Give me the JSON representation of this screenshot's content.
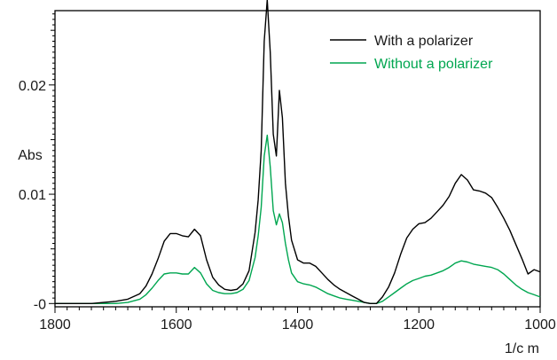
{
  "chart_data": {
    "type": "line",
    "title": "",
    "xlabel": "1/c m",
    "ylabel": "Abs",
    "xlim": [
      1800,
      1000
    ],
    "ylim": [
      -0.0003,
      0.0268
    ],
    "x_reversed": true,
    "x_ticks": [
      {
        "value": 1800,
        "label": "1800"
      },
      {
        "value": 1600,
        "label": "1600"
      },
      {
        "value": 1400,
        "label": "1400"
      },
      {
        "value": 1200,
        "label": "1200"
      },
      {
        "value": 1000,
        "label": "1000"
      }
    ],
    "y_ticks": [
      {
        "value": 0,
        "label": "-0"
      },
      {
        "value": 0.01,
        "label": "0.01"
      },
      {
        "value": 0.02,
        "label": "0.02"
      }
    ],
    "grid": false,
    "legend_position": "top-right",
    "series": [
      {
        "name": "With a polarizer",
        "color": "#000000",
        "x": [
          1800,
          1780,
          1760,
          1740,
          1720,
          1700,
          1680,
          1660,
          1650,
          1640,
          1630,
          1620,
          1610,
          1600,
          1590,
          1580,
          1570,
          1560,
          1550,
          1540,
          1530,
          1520,
          1510,
          1500,
          1490,
          1480,
          1470,
          1465,
          1460,
          1455,
          1450,
          1445,
          1440,
          1435,
          1430,
          1425,
          1420,
          1415,
          1410,
          1400,
          1390,
          1380,
          1370,
          1360,
          1350,
          1340,
          1330,
          1320,
          1310,
          1300,
          1290,
          1280,
          1270,
          1260,
          1250,
          1240,
          1230,
          1220,
          1210,
          1200,
          1190,
          1180,
          1170,
          1160,
          1150,
          1140,
          1130,
          1120,
          1110,
          1100,
          1090,
          1080,
          1070,
          1060,
          1050,
          1040,
          1030,
          1020,
          1010,
          1000
        ],
        "y": [
          0.0,
          0.0,
          0.0,
          0.0,
          0.0001,
          0.0002,
          0.0004,
          0.0009,
          0.0016,
          0.0027,
          0.0041,
          0.0057,
          0.0064,
          0.0064,
          0.0062,
          0.0061,
          0.0068,
          0.0062,
          0.004,
          0.0024,
          0.0017,
          0.0013,
          0.0012,
          0.0013,
          0.0018,
          0.003,
          0.0065,
          0.0095,
          0.014,
          0.024,
          0.0278,
          0.023,
          0.0155,
          0.0135,
          0.0195,
          0.017,
          0.011,
          0.008,
          0.0058,
          0.004,
          0.0037,
          0.0037,
          0.0034,
          0.0028,
          0.0022,
          0.0017,
          0.0013,
          0.001,
          0.0007,
          0.0004,
          0.0001,
          0.0,
          0.0,
          0.0006,
          0.0015,
          0.0028,
          0.0045,
          0.006,
          0.0068,
          0.0073,
          0.0074,
          0.0078,
          0.0084,
          0.009,
          0.0098,
          0.011,
          0.0118,
          0.0113,
          0.0104,
          0.0103,
          0.0101,
          0.0097,
          0.0088,
          0.0078,
          0.0067,
          0.0054,
          0.0041,
          0.0027,
          0.0031,
          0.0029
        ]
      },
      {
        "name": "Without a polarizer",
        "color": "#00a650",
        "x": [
          1800,
          1780,
          1760,
          1740,
          1720,
          1700,
          1680,
          1660,
          1650,
          1640,
          1630,
          1620,
          1610,
          1600,
          1590,
          1580,
          1570,
          1560,
          1550,
          1540,
          1530,
          1520,
          1510,
          1500,
          1490,
          1480,
          1470,
          1465,
          1460,
          1455,
          1450,
          1445,
          1440,
          1435,
          1430,
          1425,
          1420,
          1415,
          1410,
          1400,
          1390,
          1380,
          1370,
          1360,
          1350,
          1340,
          1330,
          1320,
          1310,
          1300,
          1290,
          1280,
          1270,
          1260,
          1250,
          1240,
          1230,
          1220,
          1210,
          1200,
          1190,
          1180,
          1170,
          1160,
          1150,
          1140,
          1130,
          1120,
          1110,
          1100,
          1090,
          1080,
          1070,
          1060,
          1050,
          1040,
          1030,
          1020,
          1010,
          1000
        ],
        "y": [
          0.0,
          0.0,
          0.0,
          0.0,
          0.0,
          0.0,
          0.0001,
          0.0004,
          0.0008,
          0.0014,
          0.0021,
          0.0027,
          0.0028,
          0.0028,
          0.0027,
          0.0027,
          0.0033,
          0.0028,
          0.0018,
          0.0012,
          0.001,
          0.0009,
          0.0009,
          0.001,
          0.0013,
          0.0021,
          0.0042,
          0.0062,
          0.0088,
          0.0135,
          0.0154,
          0.0125,
          0.0085,
          0.0072,
          0.0082,
          0.0074,
          0.0055,
          0.004,
          0.0028,
          0.002,
          0.0018,
          0.0017,
          0.0015,
          0.0012,
          0.0009,
          0.0007,
          0.0005,
          0.0004,
          0.0003,
          0.0002,
          0.0001,
          0.0,
          0.0,
          0.0002,
          0.0006,
          0.001,
          0.0014,
          0.0018,
          0.0021,
          0.0023,
          0.0025,
          0.0026,
          0.0028,
          0.003,
          0.0033,
          0.0037,
          0.0039,
          0.0038,
          0.0036,
          0.0035,
          0.0034,
          0.0033,
          0.0031,
          0.0027,
          0.0022,
          0.0017,
          0.0013,
          0.001,
          0.0008,
          0.0006
        ]
      }
    ]
  }
}
